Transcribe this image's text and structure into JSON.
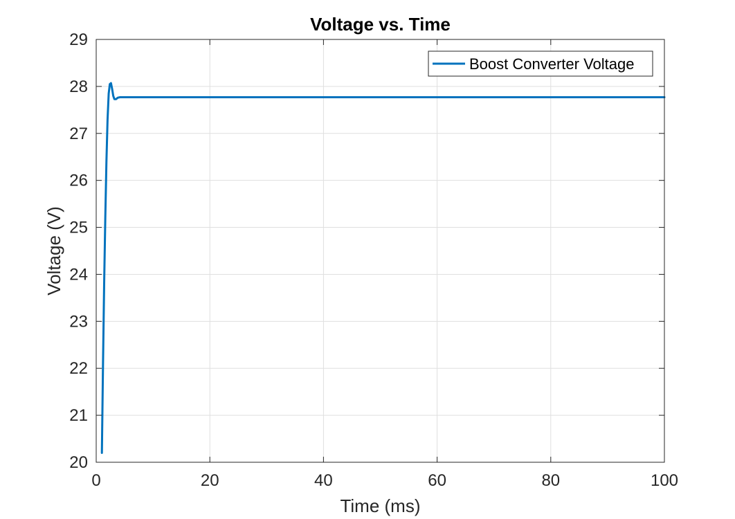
{
  "chart_data": {
    "type": "line",
    "title": "Voltage vs. Time",
    "xlabel": "Time (ms)",
    "ylabel": "Voltage (V)",
    "xlim": [
      0,
      100
    ],
    "ylim": [
      20,
      29
    ],
    "xticks": [
      0,
      20,
      40,
      60,
      80,
      100
    ],
    "yticks": [
      20,
      21,
      22,
      23,
      24,
      25,
      26,
      27,
      28,
      29
    ],
    "grid": true,
    "legend_position": "top-right",
    "series": [
      {
        "name": "Boost Converter Voltage",
        "color": "#0072BD",
        "x": [
          1.0,
          1.2,
          1.4,
          1.6,
          1.8,
          2.0,
          2.2,
          2.4,
          2.6,
          2.8,
          3.0,
          3.2,
          3.5,
          3.8,
          4.2,
          5.0,
          10,
          20,
          40,
          60,
          80,
          100
        ],
        "y": [
          20.2,
          22.1,
          23.8,
          25.2,
          26.4,
          27.3,
          27.85,
          28.05,
          28.07,
          27.95,
          27.8,
          27.73,
          27.73,
          27.76,
          27.77,
          27.77,
          27.77,
          27.77,
          27.77,
          27.77,
          27.77,
          27.77
        ]
      }
    ]
  }
}
